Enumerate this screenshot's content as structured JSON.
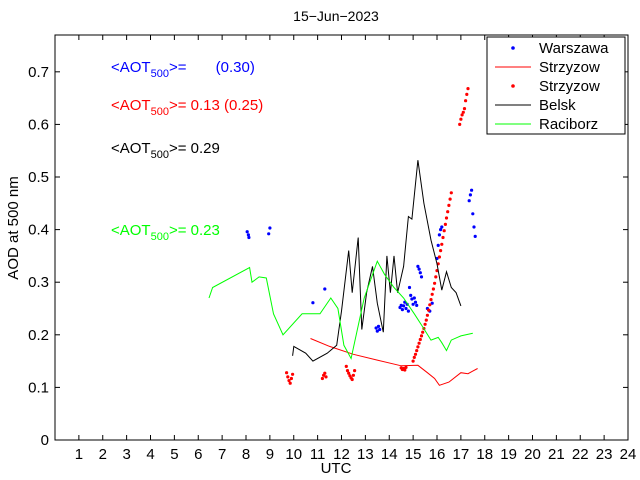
{
  "chart_data": {
    "type": "line",
    "title": "15−Jun−2023",
    "xlabel": "UTC",
    "ylabel": "AOD at 500 nm",
    "xlim": [
      0,
      24
    ],
    "ylim": [
      0,
      0.77
    ],
    "xticks": [
      0,
      1,
      2,
      3,
      4,
      5,
      6,
      7,
      8,
      9,
      10,
      11,
      12,
      13,
      14,
      15,
      16,
      17,
      18,
      19,
      20,
      21,
      22,
      23,
      24
    ],
    "xtick_labels": [
      "",
      "1",
      "2",
      "3",
      "4",
      "5",
      "6",
      "7",
      "8",
      "9",
      "10",
      "11",
      "12",
      "13",
      "14",
      "15",
      "16",
      "17",
      "18",
      "19",
      "20",
      "21",
      "22",
      "23",
      "24"
    ],
    "yticks": [
      0,
      0.1,
      0.2,
      0.3,
      0.4,
      0.5,
      0.6,
      0.7
    ],
    "ytick_labels": [
      "0",
      "0.1",
      "0.2",
      "0.3",
      "0.4",
      "0.5",
      "0.6",
      "0.7"
    ],
    "grid": false,
    "legend_position": "top-right",
    "series": [
      {
        "name": "Warszawa",
        "type": "scatter",
        "color": "#0000ff",
        "points": [
          [
            8.05,
            0.396
          ],
          [
            8.1,
            0.39
          ],
          [
            8.12,
            0.385
          ],
          [
            8.95,
            0.392
          ],
          [
            9.0,
            0.403
          ],
          [
            10.8,
            0.261
          ],
          [
            11.3,
            0.287
          ],
          [
            13.45,
            0.213
          ],
          [
            13.5,
            0.207
          ],
          [
            13.55,
            0.216
          ],
          [
            13.6,
            0.21
          ],
          [
            14.45,
            0.252
          ],
          [
            14.5,
            0.256
          ],
          [
            14.55,
            0.248
          ],
          [
            14.6,
            0.255
          ],
          [
            14.65,
            0.262
          ],
          [
            14.7,
            0.25
          ],
          [
            14.75,
            0.258
          ],
          [
            14.8,
            0.245
          ],
          [
            14.85,
            0.29
          ],
          [
            14.9,
            0.275
          ],
          [
            14.95,
            0.268
          ],
          [
            15.0,
            0.258
          ],
          [
            15.05,
            0.27
          ],
          [
            15.1,
            0.262
          ],
          [
            15.15,
            0.256
          ],
          [
            15.2,
            0.33
          ],
          [
            15.25,
            0.325
          ],
          [
            15.3,
            0.318
          ],
          [
            15.35,
            0.31
          ],
          [
            15.6,
            0.25
          ],
          [
            15.7,
            0.245
          ],
          [
            15.8,
            0.26
          ],
          [
            16.0,
            0.345
          ],
          [
            16.05,
            0.37
          ],
          [
            16.1,
            0.39
          ],
          [
            16.15,
            0.4
          ],
          [
            16.2,
            0.405
          ],
          [
            17.35,
            0.455
          ],
          [
            17.4,
            0.466
          ],
          [
            17.45,
            0.475
          ],
          [
            17.5,
            0.43
          ],
          [
            17.55,
            0.405
          ],
          [
            17.6,
            0.387
          ]
        ]
      },
      {
        "name": "Strzyzow",
        "type": "line",
        "color": "#ff0000",
        "points": [
          [
            10.7,
            0.193
          ],
          [
            11.5,
            0.178
          ],
          [
            12.5,
            0.163
          ],
          [
            13.5,
            0.152
          ],
          [
            14.5,
            0.141
          ],
          [
            15.2,
            0.142
          ],
          [
            15.6,
            0.128
          ],
          [
            15.9,
            0.117
          ],
          [
            16.1,
            0.104
          ],
          [
            16.5,
            0.11
          ],
          [
            17.0,
            0.128
          ],
          [
            17.3,
            0.126
          ],
          [
            17.5,
            0.131
          ],
          [
            17.7,
            0.136
          ]
        ]
      },
      {
        "name": "Strzyzow",
        "type": "scatter",
        "color": "#ff0000",
        "points": [
          [
            9.7,
            0.128
          ],
          [
            9.75,
            0.12
          ],
          [
            9.8,
            0.113
          ],
          [
            9.85,
            0.108
          ],
          [
            9.9,
            0.117
          ],
          [
            9.95,
            0.125
          ],
          [
            11.2,
            0.117
          ],
          [
            11.25,
            0.123
          ],
          [
            11.3,
            0.127
          ],
          [
            11.35,
            0.12
          ],
          [
            12.2,
            0.14
          ],
          [
            12.25,
            0.132
          ],
          [
            12.3,
            0.127
          ],
          [
            12.35,
            0.122
          ],
          [
            12.4,
            0.118
          ],
          [
            12.45,
            0.115
          ],
          [
            12.5,
            0.123
          ],
          [
            12.55,
            0.132
          ],
          [
            14.5,
            0.137
          ],
          [
            14.55,
            0.134
          ],
          [
            14.6,
            0.136
          ],
          [
            14.65,
            0.133
          ],
          [
            14.7,
            0.138
          ],
          [
            15.0,
            0.15
          ],
          [
            15.05,
            0.157
          ],
          [
            15.1,
            0.163
          ],
          [
            15.15,
            0.17
          ],
          [
            15.2,
            0.177
          ],
          [
            15.25,
            0.184
          ],
          [
            15.3,
            0.191
          ],
          [
            15.35,
            0.198
          ],
          [
            15.4,
            0.205
          ],
          [
            15.45,
            0.212
          ],
          [
            15.5,
            0.22
          ],
          [
            15.55,
            0.228
          ],
          [
            15.6,
            0.237
          ],
          [
            15.65,
            0.247
          ],
          [
            15.7,
            0.257
          ],
          [
            15.75,
            0.267
          ],
          [
            15.8,
            0.277
          ],
          [
            15.85,
            0.287
          ],
          [
            15.9,
            0.298
          ],
          [
            15.95,
            0.31
          ],
          [
            16.0,
            0.322
          ],
          [
            16.05,
            0.335
          ],
          [
            16.1,
            0.348
          ],
          [
            16.15,
            0.36
          ],
          [
            16.2,
            0.372
          ],
          [
            16.25,
            0.385
          ],
          [
            16.3,
            0.398
          ],
          [
            16.35,
            0.41
          ],
          [
            16.4,
            0.422
          ],
          [
            16.45,
            0.434
          ],
          [
            16.5,
            0.446
          ],
          [
            16.55,
            0.458
          ],
          [
            16.6,
            0.47
          ],
          [
            16.95,
            0.6
          ],
          [
            17.0,
            0.61
          ],
          [
            17.05,
            0.618
          ],
          [
            17.1,
            0.623
          ],
          [
            17.15,
            0.63
          ],
          [
            17.2,
            0.645
          ],
          [
            17.25,
            0.657
          ],
          [
            17.3,
            0.668
          ]
        ]
      },
      {
        "name": "Belsk",
        "type": "line",
        "color": "#000000",
        "points": [
          [
            9.95,
            0.16
          ],
          [
            10.0,
            0.178
          ],
          [
            10.5,
            0.165
          ],
          [
            10.8,
            0.15
          ],
          [
            11.4,
            0.165
          ],
          [
            11.8,
            0.18
          ],
          [
            12.0,
            0.245
          ],
          [
            12.3,
            0.36
          ],
          [
            12.45,
            0.28
          ],
          [
            12.7,
            0.385
          ],
          [
            12.85,
            0.21
          ],
          [
            13.05,
            0.28
          ],
          [
            13.3,
            0.33
          ],
          [
            13.5,
            0.26
          ],
          [
            13.75,
            0.205
          ],
          [
            13.9,
            0.35
          ],
          [
            14.05,
            0.28
          ],
          [
            14.2,
            0.35
          ],
          [
            14.35,
            0.28
          ],
          [
            14.6,
            0.33
          ],
          [
            14.8,
            0.425
          ],
          [
            14.95,
            0.42
          ],
          [
            15.2,
            0.532
          ],
          [
            15.45,
            0.45
          ],
          [
            15.75,
            0.38
          ],
          [
            16.0,
            0.335
          ],
          [
            16.2,
            0.285
          ],
          [
            16.4,
            0.32
          ],
          [
            16.6,
            0.29
          ],
          [
            16.8,
            0.28
          ],
          [
            17.0,
            0.255
          ]
        ]
      },
      {
        "name": "Raciborz",
        "type": "line",
        "color": "#00ff00",
        "points": [
          [
            6.45,
            0.27
          ],
          [
            6.6,
            0.29
          ],
          [
            8.15,
            0.328
          ],
          [
            8.25,
            0.3
          ],
          [
            8.55,
            0.31
          ],
          [
            8.85,
            0.308
          ],
          [
            9.15,
            0.24
          ],
          [
            9.55,
            0.2
          ],
          [
            10.35,
            0.24
          ],
          [
            11.1,
            0.24
          ],
          [
            11.55,
            0.27
          ],
          [
            11.85,
            0.25
          ],
          [
            12.1,
            0.18
          ],
          [
            12.4,
            0.155
          ],
          [
            12.95,
            0.27
          ],
          [
            13.5,
            0.34
          ],
          [
            13.8,
            0.315
          ],
          [
            14.2,
            0.29
          ],
          [
            14.6,
            0.27
          ],
          [
            15.05,
            0.24
          ],
          [
            15.4,
            0.215
          ],
          [
            15.75,
            0.19
          ],
          [
            16.05,
            0.195
          ],
          [
            16.2,
            0.185
          ],
          [
            16.4,
            0.17
          ],
          [
            16.6,
            0.19
          ],
          [
            16.85,
            0.195
          ],
          [
            17.0,
            0.198
          ],
          [
            17.5,
            0.203
          ]
        ]
      }
    ],
    "annotations": [
      {
        "color": "#0000ff",
        "prefix": "<AOT",
        "sub": "500",
        "suffix": ">=",
        "value": "       (0.30)"
      },
      {
        "color": "#ff0000",
        "prefix": "<AOT",
        "sub": "500",
        "suffix": ">=",
        "value": " 0.13 (0.25)"
      },
      {
        "color": "#000000",
        "prefix": "<AOT",
        "sub": "500",
        "suffix": ">=",
        "value": " 0.29"
      },
      {
        "color": "#00ff00",
        "prefix": "<AOT",
        "sub": "500",
        "suffix": ">=",
        "value": " 0.23"
      }
    ]
  }
}
